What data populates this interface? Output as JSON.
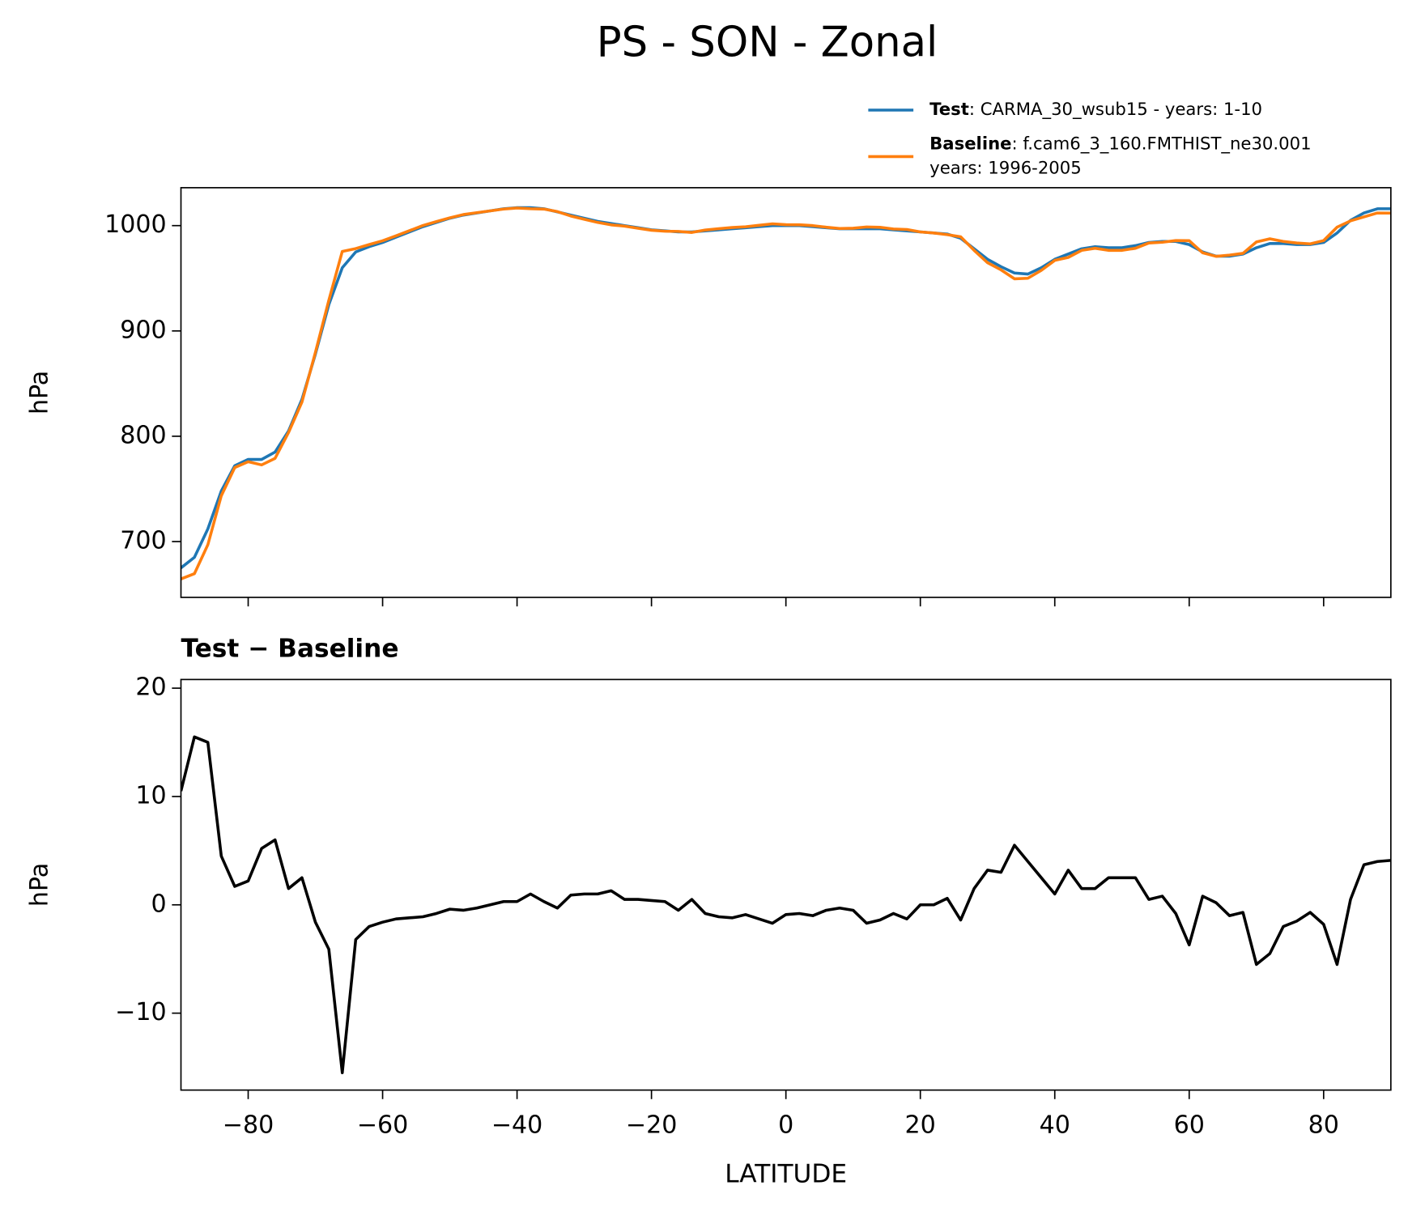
{
  "title": "PS - SON - Zonal",
  "chart_data": [
    {
      "type": "line",
      "ylabel": "hPa",
      "x": [
        -90,
        -88,
        -86,
        -84,
        -82,
        -80,
        -78,
        -76,
        -74,
        -72,
        -70,
        -68,
        -66,
        -64,
        -62,
        -60,
        -58,
        -56,
        -54,
        -52,
        -50,
        -48,
        -46,
        -44,
        -42,
        -40,
        -38,
        -36,
        -34,
        -32,
        -30,
        -28,
        -26,
        -24,
        -22,
        -20,
        -18,
        -16,
        -14,
        -12,
        -10,
        -8,
        -6,
        -4,
        -2,
        0,
        2,
        4,
        6,
        8,
        10,
        12,
        14,
        16,
        18,
        20,
        22,
        24,
        26,
        28,
        30,
        32,
        34,
        36,
        38,
        40,
        42,
        44,
        46,
        48,
        50,
        52,
        54,
        56,
        58,
        60,
        62,
        64,
        66,
        68,
        70,
        72,
        74,
        76,
        78,
        80,
        82,
        84,
        86,
        88,
        90
      ],
      "series": [
        {
          "name": "Test",
          "description": [
            ": CARMA_30_wsub15 - years: 1-10"
          ],
          "color": "#1f77b4",
          "values": [
            675,
            685,
            712,
            748,
            772,
            778,
            778,
            785,
            805,
            835,
            878,
            925,
            960,
            975,
            980,
            984,
            989,
            994,
            999,
            1003,
            1007,
            1010,
            1012,
            1014,
            1016,
            1017,
            1017,
            1016,
            1013,
            1010,
            1007,
            1004,
            1002,
            1000,
            998,
            996,
            995,
            994,
            994,
            995,
            996,
            997,
            998,
            999,
            1000,
            1000,
            1000,
            999,
            998,
            997,
            997,
            997,
            997,
            996,
            995,
            994,
            993,
            992,
            988,
            978,
            968,
            961,
            955,
            954,
            960,
            968,
            973,
            978,
            980,
            979,
            979,
            981,
            984,
            985,
            985,
            982,
            975,
            971,
            971,
            973,
            979,
            983,
            983,
            982,
            982,
            984,
            993,
            1005,
            1012,
            1016,
            1016
          ]
        },
        {
          "name": "Baseline",
          "description": [
            ": f.cam6_3_160.FMTHIST_ne30.001",
            "years: 1996-2005"
          ],
          "color": "#ff7f0e",
          "values": [
            664.5,
            669.5,
            697,
            743.5,
            770.3,
            775.8,
            772.8,
            779,
            803.5,
            832.5,
            879.6,
            929.1,
            975.5,
            978.2,
            982,
            985.6,
            990.3,
            995.2,
            1000.1,
            1003.8,
            1007.4,
            1010.5,
            1012.3,
            1014,
            1015.7,
            1016.7,
            1016,
            1015.7,
            1013.3,
            1009.1,
            1006,
            1003,
            1000.7,
            999.5,
            997.5,
            995.6,
            994.7,
            994.5,
            993.5,
            995.8,
            997.1,
            998.2,
            998.9,
            1000.3,
            1001.7,
            1000.9,
            1000.8,
            1000,
            998.5,
            997.3,
            997.5,
            998.7,
            998.4,
            996.8,
            996.3,
            994,
            993,
            991.4,
            989.4,
            976.5,
            964.8,
            958,
            949.5,
            950,
            957.5,
            967,
            969.8,
            976.5,
            978.5,
            976.5,
            976.5,
            978.5,
            983.5,
            984.2,
            985.8,
            985.7,
            974.2,
            970.8,
            972,
            973.7,
            984.5,
            987.5,
            985,
            983.5,
            982.7,
            985.8,
            998.5,
            1004.5,
            1008.3,
            1012,
            1011.9
          ]
        }
      ],
      "xlim": [
        -90,
        90
      ],
      "xticks": [
        -80,
        -60,
        -40,
        -20,
        0,
        20,
        40,
        60,
        80
      ],
      "ylim": [
        647,
        1036
      ],
      "yticks": [
        700,
        800,
        900,
        1000
      ],
      "legend": "upper right"
    },
    {
      "type": "line",
      "title": "Test − Baseline",
      "xlabel": "LATITUDE",
      "ylabel": "hPa",
      "x": [
        -90,
        -88,
        -86,
        -84,
        -82,
        -80,
        -78,
        -76,
        -74,
        -72,
        -70,
        -68,
        -66,
        -64,
        -62,
        -60,
        -58,
        -56,
        -54,
        -52,
        -50,
        -48,
        -46,
        -44,
        -42,
        -40,
        -38,
        -36,
        -34,
        -32,
        -30,
        -28,
        -26,
        -24,
        -22,
        -20,
        -18,
        -16,
        -14,
        -12,
        -10,
        -8,
        -6,
        -4,
        -2,
        0,
        2,
        4,
        6,
        8,
        10,
        12,
        14,
        16,
        18,
        20,
        22,
        24,
        26,
        28,
        30,
        32,
        34,
        36,
        38,
        40,
        42,
        44,
        46,
        48,
        50,
        52,
        54,
        56,
        58,
        60,
        62,
        64,
        66,
        68,
        70,
        72,
        74,
        76,
        78,
        80,
        82,
        84,
        86,
        88,
        90
      ],
      "series": [
        {
          "color": "#000000",
          "values": [
            10.5,
            15.5,
            15,
            4.5,
            1.7,
            2.2,
            5.2,
            6,
            1.5,
            2.5,
            -1.6,
            -4.1,
            -15.5,
            -3.2,
            -2,
            -1.6,
            -1.3,
            -1.2,
            -1.1,
            -0.8,
            -0.4,
            -0.5,
            -0.3,
            0,
            0.3,
            0.3,
            1,
            0.3,
            -0.3,
            0.9,
            1,
            1,
            1.3,
            0.5,
            0.5,
            0.4,
            0.3,
            -0.5,
            0.5,
            -0.8,
            -1.1,
            -1.2,
            -0.9,
            -1.3,
            -1.7,
            -0.9,
            -0.8,
            -1,
            -0.5,
            -0.3,
            -0.5,
            -1.7,
            -1.4,
            -0.8,
            -1.3,
            0,
            0,
            0.6,
            -1.4,
            1.5,
            3.2,
            3,
            5.5,
            4,
            2.5,
            1,
            3.2,
            1.5,
            1.5,
            2.5,
            2.5,
            2.5,
            0.5,
            0.8,
            -0.8,
            -3.7,
            0.8,
            0.2,
            -1,
            -0.7,
            -5.5,
            -4.5,
            -2,
            -1.5,
            -0.7,
            -1.8,
            -5.5,
            0.5,
            3.7,
            4,
            4.1
          ]
        }
      ],
      "xlim": [
        -90,
        90
      ],
      "xticks": [
        {
          "value": -80,
          "label": "−80"
        },
        {
          "value": -60,
          "label": "−60"
        },
        {
          "value": -40,
          "label": "−40"
        },
        {
          "value": -20,
          "label": "−20"
        },
        0,
        20,
        40,
        60,
        80
      ],
      "ylim": [
        -17.1,
        20.8
      ],
      "yticks": [
        {
          "value": -10,
          "label": "−10"
        },
        0,
        10,
        20
      ]
    }
  ]
}
